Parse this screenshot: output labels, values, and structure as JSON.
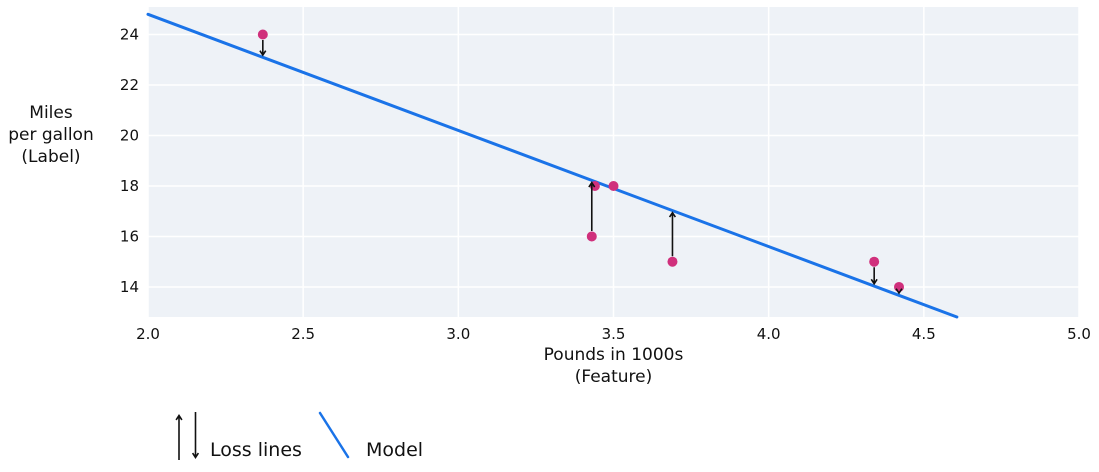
{
  "chart_data": {
    "type": "scatter",
    "title": "",
    "xlabel_lines": [
      "Pounds in 1000s",
      "(Feature)"
    ],
    "ylabel_lines": [
      "Miles",
      "per gallon",
      "(Label)"
    ],
    "xlim": [
      2.0,
      5.0
    ],
    "ylim": [
      12.81,
      25.09
    ],
    "x_ticks": [
      2.0,
      2.5,
      3.0,
      3.5,
      4.0,
      4.5,
      5.0
    ],
    "x_tick_labels": [
      "2.0",
      "2.5",
      "3.0",
      "3.5",
      "4.0",
      "4.5",
      "5.0"
    ],
    "y_ticks": [
      14,
      16,
      18,
      20,
      22,
      24
    ],
    "y_tick_labels": [
      "14",
      "16",
      "18",
      "20",
      "22",
      "24"
    ],
    "grid": true,
    "points": {
      "x": [
        2.37,
        3.5,
        3.44,
        3.43,
        3.69,
        4.34,
        4.42
      ],
      "y": [
        24,
        18,
        18,
        16,
        15,
        15,
        14
      ]
    },
    "model_line": {
      "slope": -4.6,
      "intercept": 34,
      "x_start": 2.0
    },
    "loss_lines": [
      {
        "x": 2.37,
        "point_y": 24,
        "line_y": 23.1,
        "direction": "down"
      },
      {
        "x": 3.43,
        "point_y": 16,
        "line_y": 18.22,
        "direction": "up"
      },
      {
        "x": 3.69,
        "point_y": 15,
        "line_y": 17.03,
        "direction": "up"
      },
      {
        "x": 4.34,
        "point_y": 15,
        "line_y": 14.04,
        "direction": "down"
      },
      {
        "x": 4.42,
        "point_y": 14,
        "line_y": 13.67,
        "direction": "down"
      }
    ],
    "legend": {
      "position": "below-left",
      "entries": [
        {
          "symbol": "up-down-arrows",
          "label": "Loss lines"
        },
        {
          "symbol": "line-segment",
          "label": "Model"
        }
      ]
    },
    "colors": {
      "model_line": "#1a73e8",
      "points": "#d0307c",
      "loss_arrows": "#111111",
      "plot_background": "#eef2f7",
      "gridlines": "#ffffff",
      "text": "#111111"
    }
  }
}
